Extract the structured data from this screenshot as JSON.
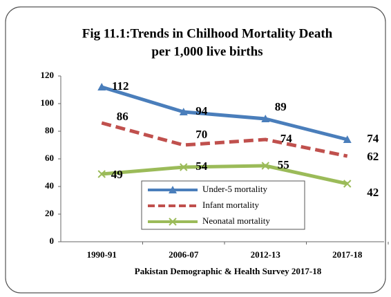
{
  "chart_data": {
    "type": "line",
    "title": "Fig 11.1:Trends in Chilhood Mortality Death",
    "subtitle": "per 1,000 live births",
    "x_label": "Pakistan Demographic & Health Survey 2017-18",
    "categories": [
      "1990-91",
      "2006-07",
      "2012-13",
      "2017-18"
    ],
    "series": [
      {
        "name": "Under-5 mortality",
        "color": "#4a7ebb",
        "marker": "triangle",
        "dashed": false,
        "values": [
          112,
          94,
          89,
          74
        ]
      },
      {
        "name": "Infant mortality",
        "color": "#c0504d",
        "marker": "none",
        "dashed": true,
        "values": [
          86,
          70,
          74,
          62
        ]
      },
      {
        "name": "Neonatal mortality",
        "color": "#9bbb59",
        "marker": "x",
        "dashed": false,
        "values": [
          49,
          54,
          55,
          42
        ]
      }
    ],
    "ylim": [
      0,
      120
    ],
    "yticks": [
      0,
      20,
      40,
      60,
      80,
      100,
      120
    ],
    "grid": false
  }
}
